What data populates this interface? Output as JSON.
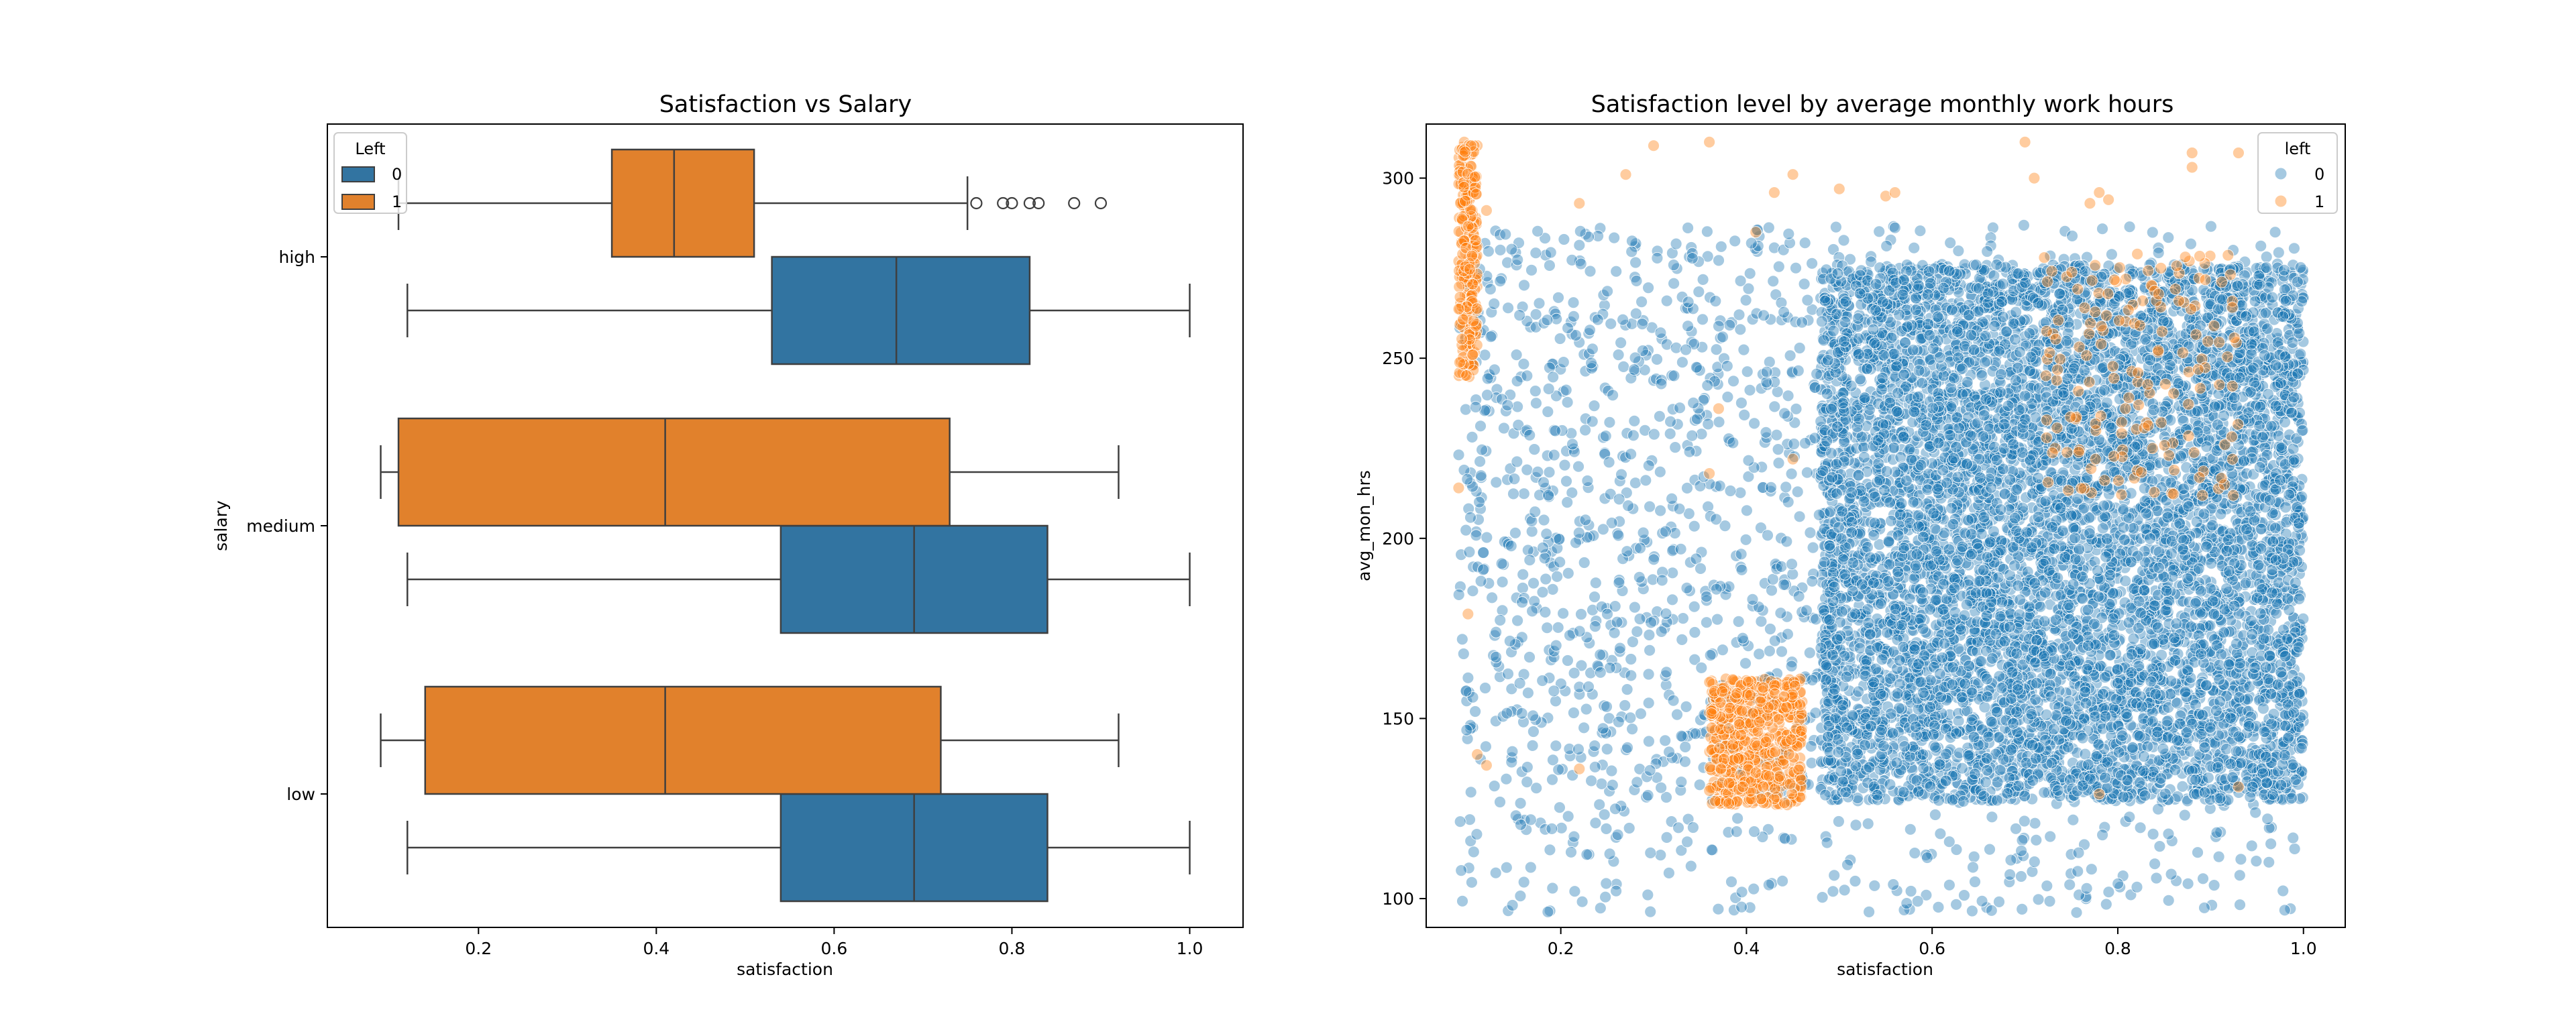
{
  "colors": {
    "left_0": "#3274a1",
    "left_1": "#e1812c",
    "scatter_0": "#1f77b4",
    "scatter_1": "#ff7f0e",
    "edge": "#3f3f3f"
  },
  "chart_data": [
    {
      "type": "boxplot",
      "orientation": "horizontal",
      "title": "Satisfaction vs Salary",
      "xlabel": "satisfaction",
      "ylabel": "salary",
      "xlim": [
        0.03,
        1.06
      ],
      "xticks": [
        "0.2",
        "0.4",
        "0.6",
        "0.8",
        "1.0"
      ],
      "categories": [
        "high",
        "medium",
        "low"
      ],
      "legend": {
        "title": "Left",
        "entries": [
          "0",
          "1"
        ],
        "position": "upper left"
      },
      "series": [
        {
          "name": "0",
          "boxes": [
            {
              "category": "high",
              "whislo": 0.12,
              "q1": 0.53,
              "med": 0.67,
              "q3": 0.82,
              "whishi": 1.0,
              "fliers": []
            },
            {
              "category": "medium",
              "whislo": 0.12,
              "q1": 0.54,
              "med": 0.69,
              "q3": 0.84,
              "whishi": 1.0,
              "fliers": []
            },
            {
              "category": "low",
              "whislo": 0.12,
              "q1": 0.54,
              "med": 0.69,
              "q3": 0.84,
              "whishi": 1.0,
              "fliers": []
            }
          ]
        },
        {
          "name": "1",
          "boxes": [
            {
              "category": "high",
              "whislo": 0.11,
              "q1": 0.35,
              "med": 0.42,
              "q3": 0.51,
              "whishi": 0.75,
              "fliers": [
                0.76,
                0.79,
                0.8,
                0.82,
                0.83,
                0.87,
                0.9
              ]
            },
            {
              "category": "medium",
              "whislo": 0.09,
              "q1": 0.11,
              "med": 0.41,
              "q3": 0.73,
              "whishi": 0.92,
              "fliers": []
            },
            {
              "category": "low",
              "whislo": 0.09,
              "q1": 0.14,
              "med": 0.41,
              "q3": 0.72,
              "whishi": 0.92,
              "fliers": []
            }
          ]
        }
      ]
    },
    {
      "type": "scatter",
      "title": "Satisfaction level by average monthly work hours",
      "xlabel": "satisfaction",
      "ylabel": "avg_mon_hrs",
      "xlim": [
        0.055,
        1.045
      ],
      "ylim": [
        92,
        315
      ],
      "xticks": [
        "0.2",
        "0.4",
        "0.6",
        "0.8",
        "1.0"
      ],
      "yticks": [
        "100",
        "150",
        "200",
        "250",
        "300"
      ],
      "legend": {
        "title": "left",
        "entries": [
          "0",
          "1"
        ],
        "position": "upper right"
      },
      "alpha": 0.4,
      "series": [
        {
          "name": "0",
          "regions": [
            {
              "x": [
                0.09,
                1.0
              ],
              "y": [
                96,
                287
              ],
              "points": 1300
            },
            {
              "x": [
                0.48,
                1.0
              ],
              "y": [
                127,
                276
              ],
              "points": 7000
            },
            {
              "x": [
                0.09,
                0.48
              ],
              "y": [
                127,
                287
              ],
              "points": 500
            }
          ]
        },
        {
          "name": "1",
          "regions": [
            {
              "x": [
                0.09,
                0.11
              ],
              "y": [
                244,
                310
              ],
              "points": 260
            },
            {
              "x": [
                0.36,
                0.46
              ],
              "y": [
                126,
                161
              ],
              "points": 520
            },
            {
              "x": [
                0.72,
                0.93
              ],
              "y": [
                211,
                279
              ],
              "points": 160
            }
          ],
          "points": [
            [
              0.3,
              309
            ],
            [
              0.36,
              310
            ],
            [
              0.43,
              296
            ],
            [
              0.45,
              301
            ],
            [
              0.7,
              310
            ],
            [
              0.71,
              300
            ],
            [
              0.77,
              293
            ],
            [
              0.78,
              296
            ],
            [
              0.79,
              294
            ],
            [
              0.88,
              307
            ],
            [
              0.93,
              307
            ],
            [
              0.88,
              303
            ],
            [
              0.12,
              291
            ],
            [
              0.22,
              293
            ],
            [
              0.27,
              301
            ],
            [
              0.41,
              285
            ],
            [
              0.09,
              214
            ],
            [
              0.1,
              179
            ],
            [
              0.11,
              140
            ],
            [
              0.12,
              137
            ],
            [
              0.22,
              136
            ],
            [
              0.37,
              236
            ],
            [
              0.36,
              218
            ],
            [
              0.45,
              222
            ],
            [
              0.5,
              297
            ],
            [
              0.55,
              295
            ],
            [
              0.56,
              296
            ],
            [
              0.93,
              131
            ],
            [
              0.78,
              129
            ]
          ]
        }
      ]
    }
  ]
}
